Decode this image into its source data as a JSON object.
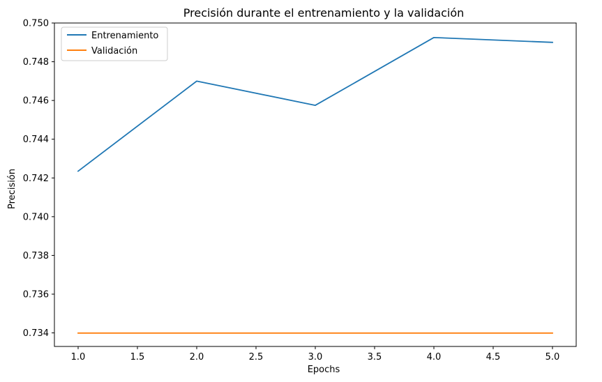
{
  "chart_data": {
    "type": "line",
    "title": "Precisión durante el entrenamiento y la validación",
    "xlabel": "Epochs",
    "ylabel": "Precisión",
    "xlim": [
      0.8,
      5.2
    ],
    "ylim": [
      0.7333,
      0.75
    ],
    "xticks": [
      1.0,
      1.5,
      2.0,
      2.5,
      3.0,
      3.5,
      4.0,
      4.5,
      5.0
    ],
    "xtick_labels": [
      "1.0",
      "1.5",
      "2.0",
      "2.5",
      "3.0",
      "3.5",
      "4.0",
      "4.5",
      "5.0"
    ],
    "yticks": [
      0.734,
      0.736,
      0.738,
      0.74,
      0.742,
      0.744,
      0.746,
      0.748,
      0.75
    ],
    "ytick_labels": [
      "0.734",
      "0.736",
      "0.738",
      "0.740",
      "0.742",
      "0.744",
      "0.746",
      "0.748",
      "0.750"
    ],
    "grid": false,
    "legend_position": "top-left",
    "x": [
      1,
      2,
      3,
      4,
      5
    ],
    "series": [
      {
        "name": "Entrenamiento",
        "color": "#1f77b4",
        "values": [
          0.74235,
          0.747,
          0.74575,
          0.74925,
          0.749
        ]
      },
      {
        "name": "Validación",
        "color": "#ff7f0e",
        "values": [
          0.73399,
          0.73399,
          0.73399,
          0.73399,
          0.73399
        ]
      }
    ]
  }
}
